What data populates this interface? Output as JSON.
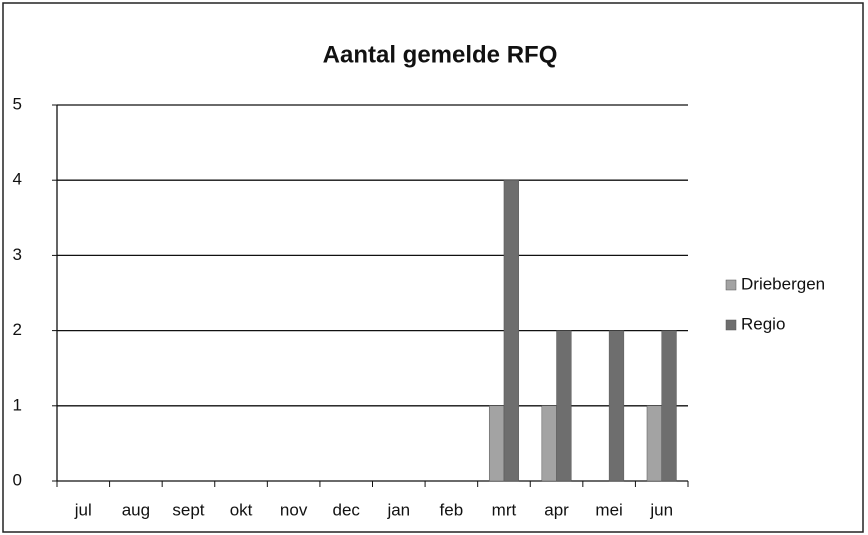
{
  "chart_data": {
    "type": "bar",
    "title": "Aantal gemelde RFQ",
    "categories": [
      "jul",
      "aug",
      "sept",
      "okt",
      "nov",
      "dec",
      "jan",
      "feb",
      "mrt",
      "apr",
      "mei",
      "jun"
    ],
    "series": [
      {
        "name": "Driebergen",
        "color": "#a3a3a3",
        "values": [
          0,
          0,
          0,
          0,
          0,
          0,
          0,
          0,
          1,
          1,
          0,
          1
        ]
      },
      {
        "name": "Regio",
        "color": "#6e6e6e",
        "values": [
          0,
          0,
          0,
          0,
          0,
          0,
          0,
          0,
          4,
          2,
          2,
          2
        ]
      }
    ],
    "ylim": [
      0,
      5
    ],
    "yticks": [
      0,
      1,
      2,
      3,
      4,
      5
    ],
    "grid": true,
    "legend": "right"
  }
}
